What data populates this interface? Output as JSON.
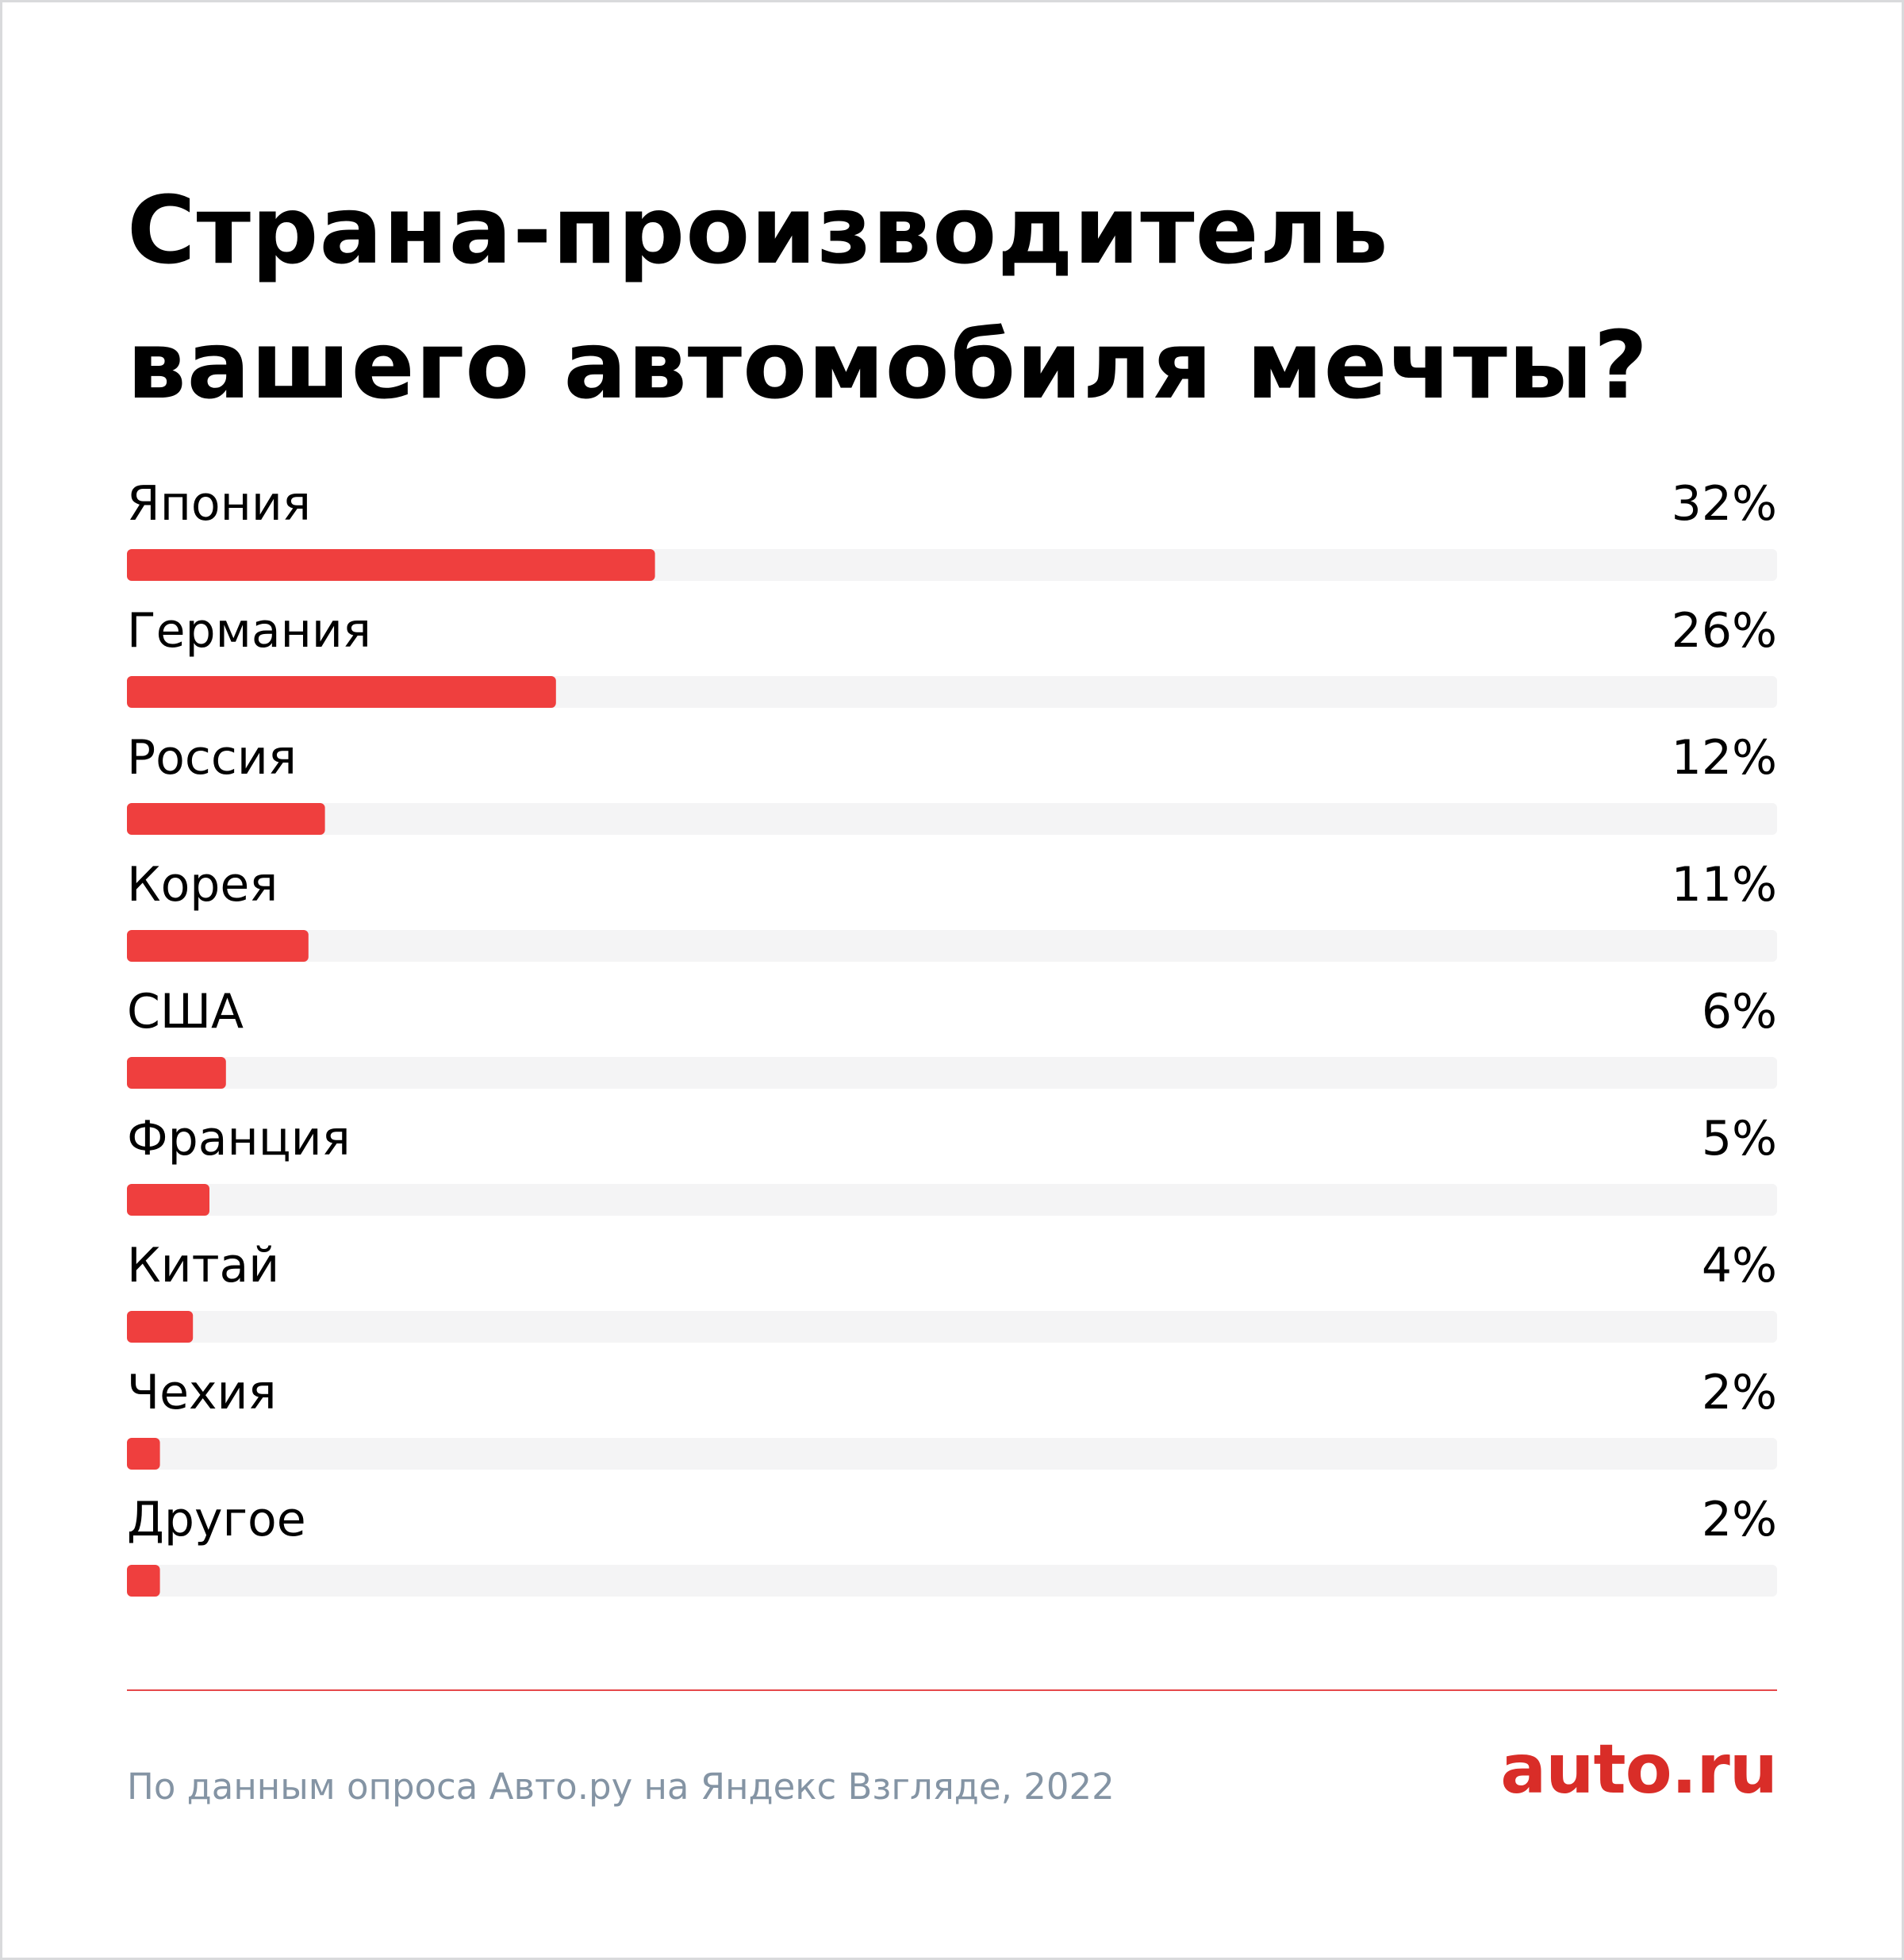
{
  "header": {
    "title_line1": "Страна-производитель",
    "title_line2": "вашего автомобиля мечты?"
  },
  "footer": {
    "source": "По данным опроса Авто.ру на Яндекс Взгляде, 2022",
    "logo": "auto.ru"
  },
  "colors": {
    "bar": "#ef3f3e",
    "track": "#f4f4f5",
    "divider": "#e5484a",
    "logo": "#d92d28",
    "source_text": "#8494a4"
  },
  "chart_data": {
    "type": "bar",
    "orientation": "horizontal",
    "categories": [
      "Япония",
      "Германия",
      "Россия",
      "Корея",
      "США",
      "Франция",
      "Китай",
      "Чехия",
      "Другое"
    ],
    "values": [
      32,
      26,
      12,
      11,
      6,
      5,
      4,
      2,
      2
    ],
    "value_labels": [
      "32%",
      "26%",
      "12%",
      "11%",
      "6%",
      "5%",
      "4%",
      "2%",
      "2%"
    ],
    "unit": "%",
    "xlim": [
      0,
      100
    ],
    "grid": false,
    "legend": "none"
  }
}
